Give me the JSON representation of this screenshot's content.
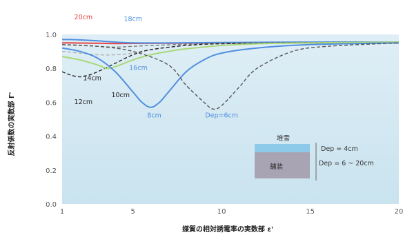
{
  "chart_data": {
    "type": "line",
    "title": "",
    "xlabel": "媒質の相対誘電率の実数部 ε'",
    "ylabel": "反射係数の実数部 Γ'",
    "xlim": [
      1,
      20
    ],
    "ylim": [
      0,
      1.0
    ],
    "xticks": [
      1,
      5,
      10,
      15,
      20
    ],
    "yticks": [
      0,
      0.2,
      0.4,
      0.6,
      0.8,
      1.0
    ],
    "ytick_labels": [
      "0.0",
      "0.2",
      "0.4",
      "0.6",
      "0.8",
      "1.0"
    ],
    "grid": false,
    "series": [
      {
        "name": "20cm",
        "color": "#e64545",
        "dash": "solid",
        "x": [
          1,
          1.5,
          2,
          3,
          4,
          5,
          7,
          10,
          15,
          20
        ],
        "y": [
          0.95,
          0.95,
          0.949,
          0.948,
          0.946,
          0.947,
          0.948,
          0.95,
          0.95,
          0.95
        ]
      },
      {
        "name": "18cm",
        "color": "#4f8fe0",
        "dash": "solid",
        "x": [
          1,
          1.5,
          2,
          3,
          4,
          5,
          7,
          10,
          15,
          20
        ],
        "y": [
          0.97,
          0.97,
          0.968,
          0.962,
          0.955,
          0.95,
          0.95,
          0.952,
          0.955,
          0.955
        ]
      },
      {
        "name": "16cm",
        "color": "#7a7a7a",
        "dash": "dashed",
        "x": [
          1,
          2,
          3,
          4,
          5,
          6,
          8,
          10,
          15,
          20
        ],
        "y": [
          0.94,
          0.935,
          0.93,
          0.925,
          0.93,
          0.935,
          0.942,
          0.948,
          0.952,
          0.955
        ]
      },
      {
        "name": "14cm",
        "color": "#b0b0b0",
        "dash": "dashed",
        "x": [
          1,
          2,
          3,
          4,
          5,
          6,
          8,
          10,
          15,
          20
        ],
        "y": [
          0.9,
          0.89,
          0.88,
          0.88,
          0.89,
          0.91,
          0.935,
          0.945,
          0.952,
          0.955
        ]
      },
      {
        "name": "12cm",
        "color": "#222222",
        "dash": "dashed",
        "x": [
          1,
          1.5,
          2,
          2.5,
          3,
          4,
          5,
          6,
          8,
          10,
          15,
          20
        ],
        "y": [
          0.78,
          0.76,
          0.75,
          0.76,
          0.78,
          0.83,
          0.88,
          0.91,
          0.935,
          0.945,
          0.952,
          0.955
        ]
      },
      {
        "name": "10cm",
        "color": "#a8d878",
        "dash": "solid",
        "x": [
          1,
          2,
          3,
          3.5,
          4,
          5,
          6,
          7,
          8,
          10,
          12,
          15,
          20
        ],
        "y": [
          0.87,
          0.85,
          0.82,
          0.8,
          0.81,
          0.85,
          0.88,
          0.9,
          0.915,
          0.935,
          0.945,
          0.95,
          0.955
        ]
      },
      {
        "name": "8cm",
        "color": "#4f8fe0",
        "dash": "solid",
        "x": [
          1,
          2,
          3,
          4,
          5,
          5.5,
          6,
          6.5,
          7,
          8,
          9,
          10,
          12,
          15,
          20
        ],
        "y": [
          0.92,
          0.9,
          0.86,
          0.78,
          0.66,
          0.6,
          0.57,
          0.6,
          0.66,
          0.78,
          0.85,
          0.89,
          0.92,
          0.94,
          0.95
        ]
      },
      {
        "name": "Dep=6cm",
        "color": "#555555",
        "dash": "dashed",
        "x": [
          1,
          3,
          5,
          7,
          8,
          9,
          9.5,
          10,
          11,
          12,
          14,
          16,
          20
        ],
        "y": [
          0.94,
          0.93,
          0.9,
          0.82,
          0.7,
          0.6,
          0.56,
          0.58,
          0.69,
          0.8,
          0.9,
          0.93,
          0.95
        ]
      }
    ],
    "labels": [
      {
        "text": "20cm",
        "x": 2.2,
        "y": 1.09,
        "color": "#e64545"
      },
      {
        "text": "18cm",
        "x": 5.0,
        "y": 1.08,
        "color": "#4f8fe0"
      },
      {
        "text": "16cm",
        "x": 5.3,
        "y": 0.79,
        "color": "#4f8fe0"
      },
      {
        "text": "14cm",
        "x": 2.7,
        "y": 0.73,
        "color": "#222222"
      },
      {
        "text": "12cm",
        "x": 2.2,
        "y": 0.59,
        "color": "#222222"
      },
      {
        "text": "10cm",
        "x": 4.3,
        "y": 0.63,
        "color": "#222222"
      },
      {
        "text": "8cm",
        "x": 6.2,
        "y": 0.51,
        "color": "#4f8fe0"
      },
      {
        "text": "Dep=6cm",
        "x": 10.0,
        "y": 0.51,
        "color": "#4f8fe0"
      }
    ],
    "inset": {
      "top_label": "堆雪",
      "bottom_label": "舗装",
      "top_depth": "Dep = 4cm",
      "bottom_depth": "Dep = 6 ~ 20cm"
    }
  }
}
